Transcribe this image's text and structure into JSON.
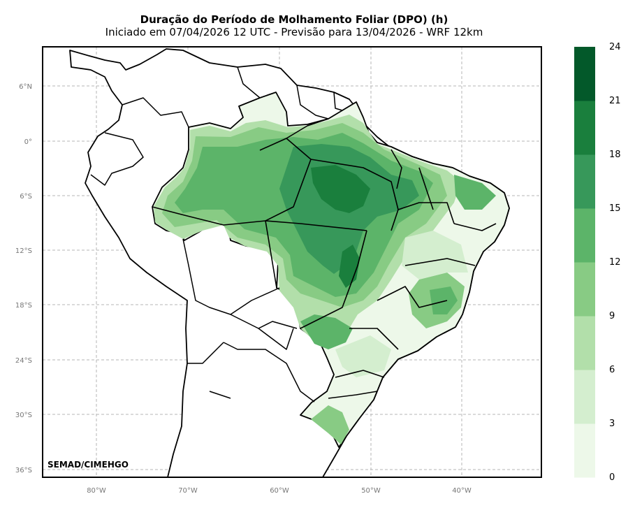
{
  "title": "Duração do Período de Molhamento Foliar (DPO) (h)",
  "subtitle": "Iniciado em 07/04/2026 12 UTC - Previsão para 13/04/2026 - WRF 12km",
  "credit": "SEMAD/CIMEHGO",
  "map": {
    "lat_labels": [
      "6°N",
      "0°",
      "6°S",
      "12°S",
      "18°S",
      "24°S",
      "30°S",
      "36°S"
    ],
    "lon_labels": [
      "80°W",
      "70°W",
      "60°W",
      "50°W",
      "40°W"
    ]
  },
  "colorbar": {
    "ticks": [
      "0",
      "3",
      "6",
      "9",
      "12",
      "15",
      "18",
      "21",
      "24"
    ],
    "colors": [
      "#edf8e9",
      "#d4eecf",
      "#b2dfaa",
      "#88cb84",
      "#5cb469",
      "#37985a",
      "#1a7f3d",
      "#03592a"
    ]
  }
}
